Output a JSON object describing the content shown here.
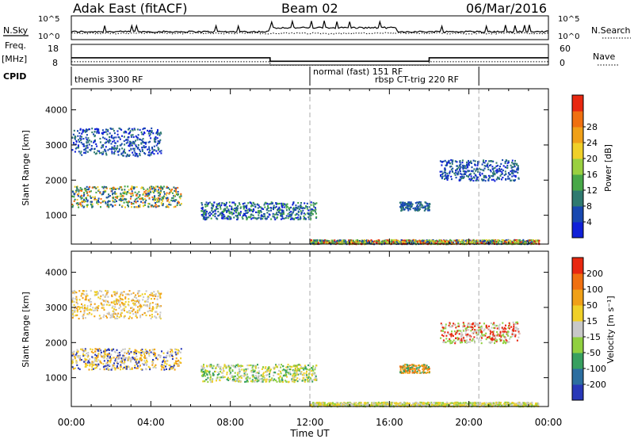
{
  "header": {
    "title": "Adak East (fitACF)",
    "beam": "Beam 02",
    "date": "06/Mar/2016"
  },
  "noise_panel": {
    "left_label": "N.Sky",
    "right_label": "N.Search",
    "tick_top": "10^5",
    "tick_bottom": "10^0"
  },
  "freq_panel": {
    "left_label_1": "Freq.",
    "left_label_2": "[MHz]",
    "right_label": "Nave",
    "left_ticks": [
      "18",
      "8"
    ],
    "right_ticks": [
      "60",
      "0"
    ],
    "freq_segments": [
      {
        "start_h": 0.0,
        "end_h": 10.0,
        "value": 11.5
      },
      {
        "start_h": 10.0,
        "end_h": 18.0,
        "value": 9.8
      },
      {
        "start_h": 18.0,
        "end_h": 24.0,
        "value": 11.5
      }
    ]
  },
  "cpid": {
    "label": "CPID",
    "segments": [
      {
        "text": "themis 3300 RF",
        "start_h": 0.0
      },
      {
        "text": "normal (fast) 151 RF",
        "start_h": 12.0
      },
      {
        "text": "rbsp CT-trig 220 RF",
        "start_h": 20.5
      }
    ],
    "boundaries_h": [
      12.0,
      20.5
    ]
  },
  "chart_data": [
    {
      "type": "heatmap",
      "name": "power",
      "ylabel": "Slant Range [km]",
      "ylim": [
        180,
        4600
      ],
      "yticks": [
        1000,
        2000,
        3000,
        4000
      ],
      "colorbar": {
        "label": "Power [dB]",
        "ticks": [
          "4",
          "8",
          "12",
          "16",
          "20",
          "24",
          "28"
        ],
        "colors": [
          "#1020d8",
          "#1848b0",
          "#2f7a70",
          "#48a848",
          "#9ad040",
          "#f0d028",
          "#f0a018",
          "#f07010",
          "#e82810"
        ]
      },
      "regions": [
        {
          "x0": 0.0,
          "x1": 5.5,
          "y0": 1250,
          "y1": 1850,
          "colors": [
            "#2f7a70",
            "#48a848",
            "#f07010",
            "#f0d028",
            "#1848b0"
          ]
        },
        {
          "x0": 0.0,
          "x1": 4.5,
          "y0": 2700,
          "y1": 3500,
          "colors": [
            "#1848b0",
            "#1020d8",
            "#2f7a70"
          ]
        },
        {
          "x0": 6.5,
          "x1": 12.3,
          "y0": 900,
          "y1": 1400,
          "colors": [
            "#1848b0",
            "#1020d8",
            "#2f7a70",
            "#48a848"
          ]
        },
        {
          "x0": 16.5,
          "x1": 18.0,
          "y0": 1150,
          "y1": 1400,
          "colors": [
            "#1848b0",
            "#2f7a70"
          ]
        },
        {
          "x0": 18.5,
          "x1": 22.5,
          "y0": 2000,
          "y1": 2600,
          "colors": [
            "#1848b0",
            "#1020d8",
            "#2f7a70"
          ]
        },
        {
          "x0": 12.0,
          "x1": 23.5,
          "y0": 200,
          "y1": 320,
          "colors": [
            "#48a848",
            "#9ad040",
            "#f0d028",
            "#1848b0",
            "#e82810"
          ]
        }
      ]
    },
    {
      "type": "heatmap",
      "name": "velocity",
      "ylabel": "Slant Range [km]",
      "xlabel": "Time UT",
      "ylim": [
        180,
        4600
      ],
      "yticks": [
        1000,
        2000,
        3000,
        4000
      ],
      "xlim": [
        0,
        24
      ],
      "xticks": [
        "00:00",
        "04:00",
        "08:00",
        "12:00",
        "16:00",
        "20:00",
        "00:00"
      ],
      "colorbar": {
        "label": "Velocity [m s⁻¹]",
        "ticks": [
          "200",
          "100",
          "50",
          "15",
          "-15",
          "-50",
          "-100",
          "-200"
        ],
        "colors": [
          "#2838b8",
          "#2c6ea0",
          "#38a060",
          "#90d040",
          "#c8c8c8",
          "#f0d028",
          "#f0a018",
          "#f07010",
          "#e82810"
        ]
      },
      "regions": [
        {
          "x0": 0.0,
          "x1": 5.5,
          "y0": 1250,
          "y1": 1850,
          "colors": [
            "#c8c8c8",
            "#f0d028",
            "#f0a018",
            "#2838b8"
          ]
        },
        {
          "x0": 0.0,
          "x1": 4.5,
          "y0": 2700,
          "y1": 3500,
          "colors": [
            "#c8c8c8",
            "#f0d028",
            "#f0a018"
          ]
        },
        {
          "x0": 6.5,
          "x1": 12.3,
          "y0": 900,
          "y1": 1400,
          "colors": [
            "#90d040",
            "#38a060",
            "#c8c8c8",
            "#f0d028"
          ]
        },
        {
          "x0": 16.5,
          "x1": 18.0,
          "y0": 1150,
          "y1": 1400,
          "colors": [
            "#f07010",
            "#f0a018",
            "#38a060"
          ]
        },
        {
          "x0": 18.5,
          "x1": 22.5,
          "y0": 2000,
          "y1": 2600,
          "colors": [
            "#c8c8c8",
            "#e82810",
            "#90d040"
          ]
        },
        {
          "x0": 12.0,
          "x1": 23.5,
          "y0": 200,
          "y1": 320,
          "colors": [
            "#c8c8c8",
            "#f0d028",
            "#90d040"
          ]
        }
      ]
    }
  ]
}
